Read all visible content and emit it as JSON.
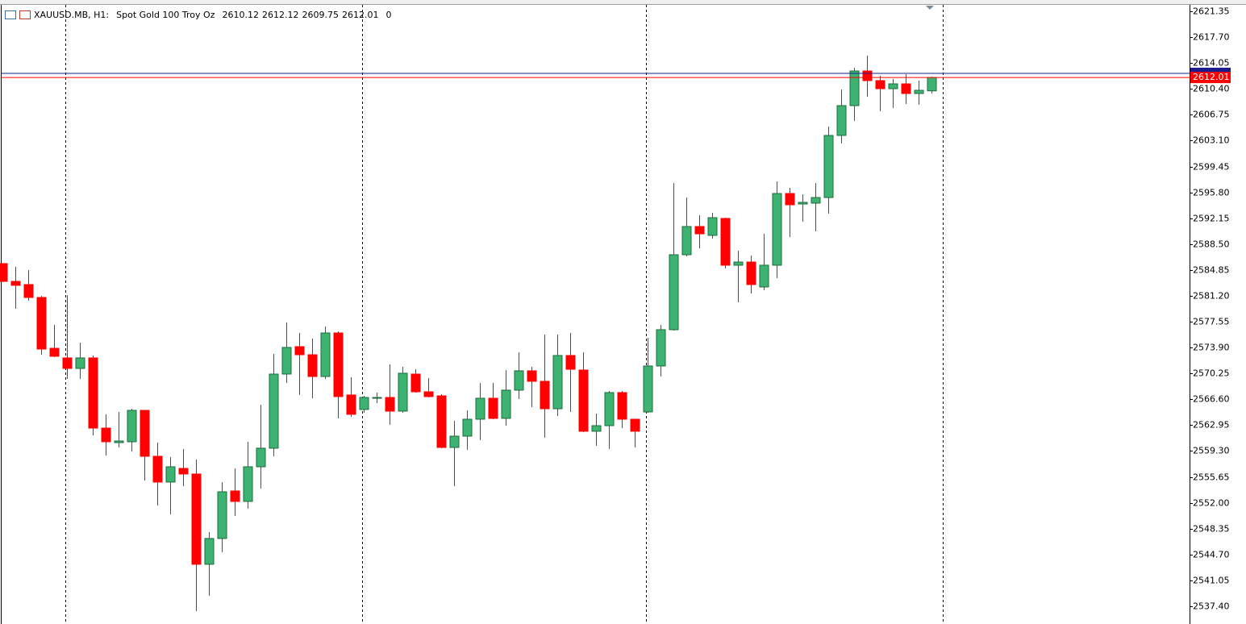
{
  "chart_data": {
    "type": "candlestick",
    "symbol": "XAUUSD.MB, H1:",
    "description": "Spot Gold 100 Troy Oz",
    "header_extra": 0,
    "up_color": "#3cb371",
    "down_color": "#ff0000",
    "ylim": [
      2535.35,
      2622.26
    ],
    "yticks": [
      2621.35,
      {
        "value": 2617.7,
        "label": "2617.70"
      },
      2614.05,
      {
        "value": 2610.4,
        "label": "2610.40"
      },
      2606.75,
      {
        "value": 2603.1,
        "label": "2603.10"
      },
      2599.45,
      {
        "value": 2595.8,
        "label": "2595.80"
      },
      2592.15,
      {
        "value": 2588.5,
        "label": "2588.50"
      },
      2584.85,
      {
        "value": 2581.2,
        "label": "2581.20"
      },
      2577.55,
      {
        "value": 2573.9,
        "label": "2573.90"
      },
      2570.25,
      {
        "value": 2566.6,
        "label": "2566.60"
      },
      2562.95,
      {
        "value": 2559.3,
        "label": "2559.30"
      },
      2555.65,
      {
        "value": 2552.0,
        "label": "2552.00"
      },
      2548.35,
      {
        "value": 2544.7,
        "label": "2544.70"
      },
      2541.05,
      {
        "value": 2537.4,
        "label": "2537.40"
      }
    ],
    "bid_line": {
      "value": 2612.01,
      "color": "#ff0000"
    },
    "ask_line": {
      "value": 2612.59,
      "color": "#1c1c8c"
    },
    "open": [
      2585.75,
      2583.24,
      2582.79,
      2580.97,
      2573.8,
      2572.44,
      2570.96,
      2572.44,
      2562.54,
      2560.49,
      2560.61,
      2565.04,
      2558.56,
      2554.92,
      2556.85,
      2556.06,
      2543.32,
      2546.96,
      2553.67,
      2552.19,
      2557.08,
      2559.7,
      2570.16,
      2574.03,
      2572.89,
      2569.82,
      2575.96,
      2567.21,
      2565.16,
      2566.75,
      2566.86,
      2564.93,
      2570.16,
      2567.66,
      2567.09,
      2559.81,
      2561.4,
      2563.79,
      2566.75,
      2563.91,
      2567.89,
      2570.62,
      2569.14,
      2565.27,
      2572.78,
      2570.73,
      2562.09,
      2562.88,
      2567.55,
      2563.79,
      2564.82,
      2571.3,
      2576.42,
      2587.0,
      2590.98,
      2589.73,
      2592.12,
      2585.52,
      2585.97,
      2582.45,
      2585.52,
      2595.64,
      2594.16,
      2594.28,
      2595.07,
      2603.83,
      2608.04,
      2612.93,
      2611.57,
      2610.43,
      2611.11,
      2609.75,
      2610.12
    ],
    "high": [
      2585.8,
      2585.29,
      2584.84,
      2581.2,
      2577.1,
      2581.31,
      2574.6,
      2572.78,
      2564.48,
      2564.82,
      2565.27,
      2565.1,
      2560.49,
      2558.45,
      2559.58,
      2558.1,
      2547.87,
      2554.92,
      2556.85,
      2560.61,
      2565.84,
      2573.01,
      2577.44,
      2575.96,
      2575.17,
      2576.87,
      2576.19,
      2569.71,
      2567.09,
      2567.55,
      2571.53,
      2571.19,
      2570.84,
      2569.59,
      2567.32,
      2563.56,
      2565.04,
      2568.91,
      2568.91,
      2570.73,
      2573.23,
      2571.19,
      2575.74,
      2575.74,
      2575.96,
      2573.23,
      2564.59,
      2567.77,
      2567.77,
      2563.85,
      2575.28,
      2577.1,
      2597.12,
      2595.07,
      2592.57,
      2592.91,
      2592.23,
      2587.57,
      2586.88,
      2589.95,
      2597.35,
      2596.44,
      2595.53,
      2597.12,
      2605.08,
      2610.32,
      2613.39,
      2615.09,
      2612.25,
      2611.8,
      2612.48,
      2611.57,
      2612.12
    ],
    "low": [
      2583.13,
      2579.38,
      2580.51,
      2572.89,
      2572.55,
      2569.48,
      2569.48,
      2561.52,
      2558.67,
      2559.81,
      2559.24,
      2555.15,
      2551.62,
      2550.37,
      2554.35,
      2536.72,
      2538.88,
      2545.02,
      2550.14,
      2551.17,
      2554.01,
      2558.56,
      2568.91,
      2567.21,
      2566.75,
      2569.48,
      2563.91,
      2564.13,
      2564.7,
      2566.07,
      2563.0,
      2564.7,
      2567.55,
      2566.86,
      2559.7,
      2554.35,
      2559.47,
      2560.83,
      2563.79,
      2562.88,
      2566.64,
      2565.5,
      2561.18,
      2564.25,
      2564.82,
      2561.97,
      2560.04,
      2559.58,
      2562.54,
      2559.81,
      2564.7,
      2569.82,
      2576.3,
      2586.77,
      2587.91,
      2589.27,
      2585.06,
      2580.29,
      2581.54,
      2581.99,
      2583.7,
      2589.5,
      2591.66,
      2590.3,
      2592.8,
      2602.69,
      2605.88,
      2609.29,
      2607.25,
      2607.7,
      2608.27,
      2608.16,
      2609.75
    ],
    "close": [
      2583.24,
      2582.68,
      2580.97,
      2573.69,
      2572.67,
      2570.96,
      2572.44,
      2562.54,
      2560.61,
      2560.72,
      2565.04,
      2558.56,
      2554.92,
      2557.08,
      2556.06,
      2543.32,
      2546.96,
      2553.55,
      2552.19,
      2557.08,
      2559.7,
      2570.16,
      2573.92,
      2572.89,
      2569.82,
      2575.96,
      2566.98,
      2564.48,
      2566.86,
      2566.86,
      2564.93,
      2570.28,
      2567.66,
      2566.98,
      2559.81,
      2561.4,
      2563.79,
      2566.75,
      2563.91,
      2567.89,
      2570.62,
      2569.14,
      2565.27,
      2572.78,
      2570.84,
      2562.09,
      2562.88,
      2567.55,
      2563.79,
      2562.09,
      2571.3,
      2576.42,
      2587.0,
      2590.98,
      2589.95,
      2592.23,
      2585.52,
      2585.97,
      2582.79,
      2585.52,
      2595.64,
      2594.05,
      2594.39,
      2595.07,
      2603.83,
      2608.04,
      2612.93,
      2611.57,
      2610.43,
      2611.11,
      2609.75,
      2610.2,
      2612.01
    ]
  }
}
